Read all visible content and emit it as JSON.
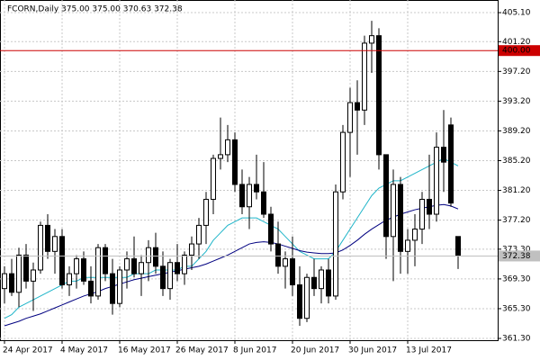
{
  "chart_data": {
    "type": "candlestick",
    "title": "FCORN,Daily  375.00 375.00 370.63 372.38",
    "categories": [
      "24 Apr 2017",
      null,
      null,
      null,
      null,
      null,
      null,
      null,
      "4 May 2017",
      null,
      null,
      null,
      null,
      null,
      null,
      null,
      "16 May 2017",
      null,
      null,
      null,
      null,
      null,
      null,
      null,
      "26 May 2017",
      null,
      null,
      null,
      null,
      null,
      null,
      null,
      "8 Jun 2017",
      null,
      null,
      null,
      null,
      null,
      null,
      null,
      "20 Jun 2017",
      null,
      null,
      null,
      null,
      null,
      null,
      null,
      "30 Jun 2017",
      null,
      null,
      null,
      null,
      null,
      null,
      null,
      "13 Jul 2017",
      null,
      null,
      null,
      null,
      null,
      null,
      null
    ],
    "open": [
      368,
      370,
      367.5,
      372.5,
      369,
      370.5,
      376.5,
      373,
      375,
      368.5,
      370,
      372,
      369,
      367,
      373.5,
      370,
      366,
      370.5,
      372,
      370,
      371.5,
      373.5,
      371,
      368,
      371.5,
      370,
      372.5,
      374,
      376.5,
      380,
      385.5,
      386,
      388,
      382,
      379,
      382,
      381,
      378,
      374,
      371,
      372,
      368.5,
      364,
      369.5,
      368,
      370.5,
      367,
      381,
      389,
      393,
      392,
      401,
      402,
      386,
      375,
      382,
      373,
      374.5,
      376,
      380,
      378,
      387,
      390,
      375
    ],
    "high": [
      371,
      372,
      373.5,
      374,
      371.5,
      377,
      378,
      376,
      376,
      371,
      372.5,
      373,
      371,
      374,
      374,
      372,
      371,
      373,
      375,
      372.5,
      374.5,
      375.5,
      373,
      372,
      374,
      373,
      375,
      377.5,
      381,
      386,
      391,
      390,
      389,
      384,
      383,
      386,
      385,
      379,
      377,
      373,
      375,
      371,
      370,
      372,
      371,
      372,
      382,
      390,
      395,
      396,
      402,
      404,
      403,
      386,
      384,
      383,
      376,
      378,
      381,
      386,
      389,
      392,
      391,
      375
    ],
    "low": [
      366,
      367,
      365.5,
      368,
      365,
      370,
      372,
      370,
      368,
      367,
      368,
      368.5,
      366,
      366.5,
      369,
      364.5,
      365.5,
      368,
      369.5,
      367,
      369,
      370,
      367,
      366.5,
      369,
      368.5,
      370.5,
      372,
      374,
      378,
      384,
      385,
      381,
      378,
      376,
      380,
      377.5,
      373,
      370,
      368,
      367,
      363,
      363.5,
      367,
      366,
      366,
      366.5,
      380,
      383,
      386,
      390,
      397,
      384,
      372,
      369,
      370,
      370,
      371,
      374,
      376,
      377,
      381,
      379,
      370.63
    ],
    "close": [
      370,
      367.5,
      372.5,
      369,
      370.5,
      376.5,
      373,
      375,
      368.5,
      370,
      372,
      369,
      367,
      373.5,
      370,
      366,
      370.5,
      372,
      370,
      371.5,
      373.5,
      371,
      368,
      371.5,
      370,
      372.5,
      374,
      376.5,
      380,
      385.5,
      386,
      388,
      382,
      379,
      382,
      381,
      378,
      374,
      371,
      372,
      368.5,
      364,
      369.5,
      368,
      370.5,
      367,
      381,
      389,
      393,
      392,
      401,
      402,
      386,
      375,
      382,
      373,
      374.5,
      376,
      380,
      378,
      387,
      385,
      379.5,
      372.38
    ],
    "bull_fill": "#ffffff",
    "bear_fill": "#000000",
    "wick_color": "#000000",
    "lines": [
      {
        "color": "#1fb5c9",
        "values": [
          364,
          364.5,
          365.5,
          366,
          366.5,
          367,
          367.5,
          368,
          368.5,
          369,
          369,
          369.5,
          369.5,
          369.5,
          369.5,
          369.5,
          369.5,
          369.5,
          370,
          370,
          370,
          370.5,
          370.5,
          370.5,
          370.5,
          371,
          371,
          372,
          373,
          374.5,
          375.5,
          376.5,
          377,
          377.5,
          377.5,
          377.5,
          377,
          376.5,
          376,
          375,
          374,
          373,
          372.5,
          372,
          372,
          372,
          373,
          374.5,
          376,
          377.5,
          379,
          380.5,
          381.5,
          382,
          382.5,
          382.5,
          383,
          383.5,
          384,
          384.5,
          385,
          385.5,
          385,
          384.5
        ]
      },
      {
        "color": "#000080",
        "values": [
          363,
          363.3,
          363.6,
          364,
          364.3,
          364.6,
          365,
          365.4,
          365.8,
          366.2,
          366.6,
          367,
          367.3,
          367.6,
          368,
          368.3,
          368.6,
          368.9,
          369.2,
          369.4,
          369.6,
          369.8,
          370,
          370.2,
          370.4,
          370.6,
          370.8,
          371,
          371.3,
          371.7,
          372.1,
          372.5,
          373,
          373.5,
          374,
          374.2,
          374.3,
          374.2,
          374,
          373.7,
          373.4,
          373.1,
          372.9,
          372.8,
          372.7,
          372.7,
          372.8,
          373.2,
          373.8,
          374.5,
          375.3,
          376,
          376.6,
          377.2,
          377.6,
          378,
          378.3,
          378.6,
          378.8,
          379,
          379.2,
          379.3,
          379.1,
          378.7
        ]
      }
    ],
    "hlines": [
      {
        "value": 400,
        "label": "400.00",
        "color": "#cc0000"
      },
      {
        "value": 372.38,
        "label": "372.38",
        "color": "#c0c0c0"
      }
    ],
    "ylim": [
      361.06,
      406.8
    ],
    "yticks": [
      {
        "value": 361.3,
        "label": "361.30"
      },
      {
        "value": 365.3,
        "label": "365.30"
      },
      {
        "value": 369.3,
        "label": "369.30"
      },
      {
        "value": 373.3,
        "label": "373.30"
      },
      {
        "value": 377.2,
        "label": "377.20"
      },
      {
        "value": 381.2,
        "label": "381.20"
      },
      {
        "value": 385.2,
        "label": "385.20"
      },
      {
        "value": 389.2,
        "label": "389.20"
      },
      {
        "value": 393.2,
        "label": "393.20"
      },
      {
        "value": 397.2,
        "label": "397.20"
      },
      {
        "value": 401.2,
        "label": "401.20"
      },
      {
        "value": 405.1,
        "label": "405.10"
      }
    ],
    "grid": true
  }
}
